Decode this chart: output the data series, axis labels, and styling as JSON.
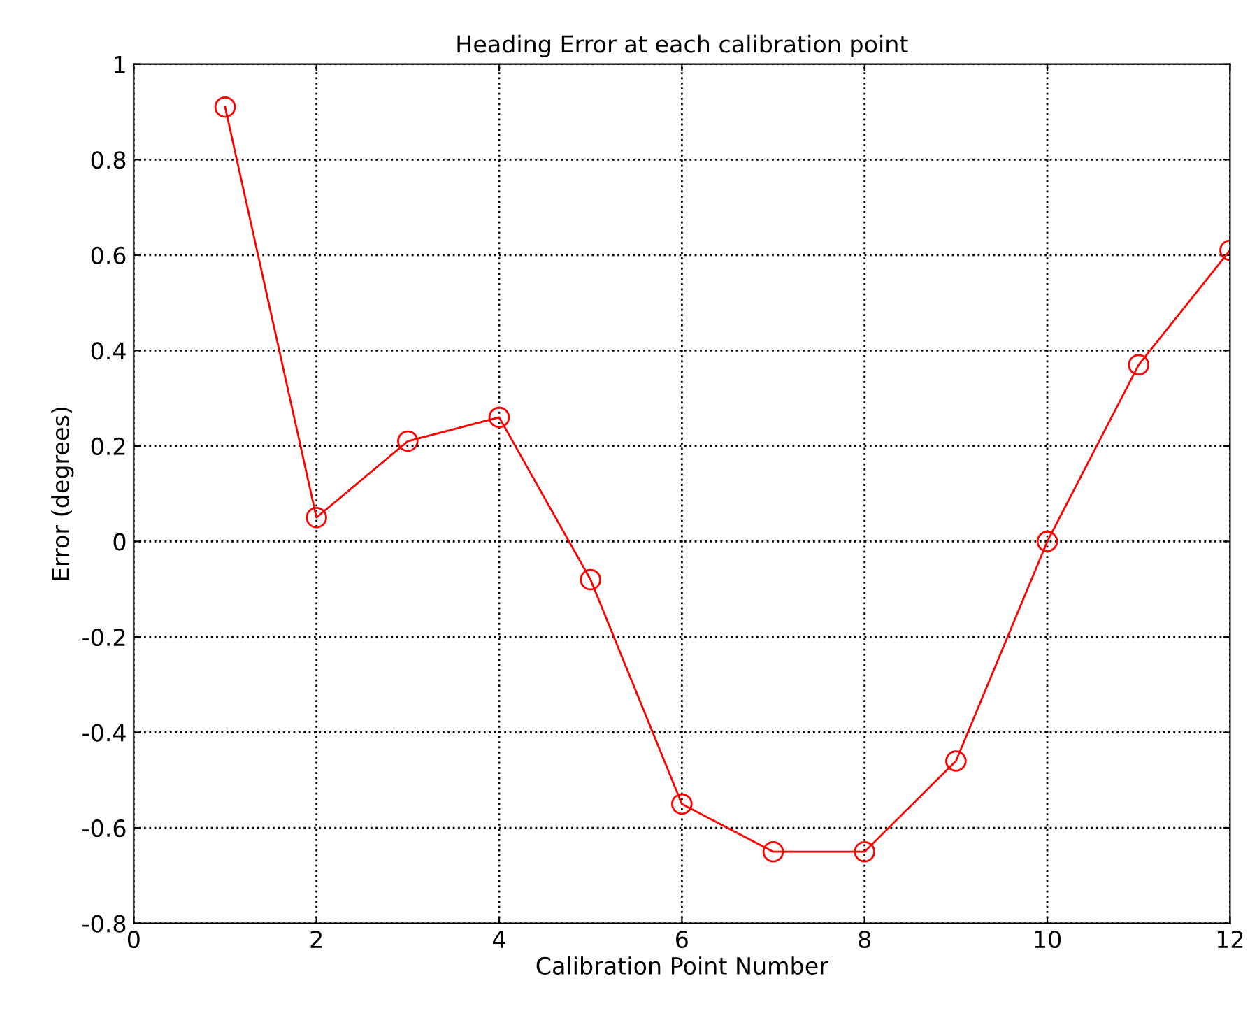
{
  "chart_data": {
    "type": "line",
    "title": "Heading Error at each calibration point",
    "xlabel": "Calibration Point Number",
    "ylabel": "Error (degrees)",
    "x": [
      1,
      2,
      3,
      4,
      5,
      6,
      7,
      8,
      9,
      10,
      11,
      12
    ],
    "series": [
      {
        "color": "#ff0000",
        "values": [
          0.91,
          0.05,
          0.21,
          0.26,
          -0.08,
          -0.55,
          -0.65,
          -0.65,
          -0.46,
          0.0,
          0.37,
          0.61
        ]
      }
    ],
    "xlim": [
      0,
      12
    ],
    "xticks": [
      0,
      2,
      4,
      6,
      8,
      10,
      12
    ],
    "ylim": [
      -0.8,
      1
    ],
    "yticks": [
      -0.8,
      -0.6,
      -0.4,
      -0.2,
      0,
      0.2,
      0.4,
      0.6,
      0.8,
      1
    ],
    "grid": true,
    "marker": "circle",
    "line_style": "solid"
  }
}
